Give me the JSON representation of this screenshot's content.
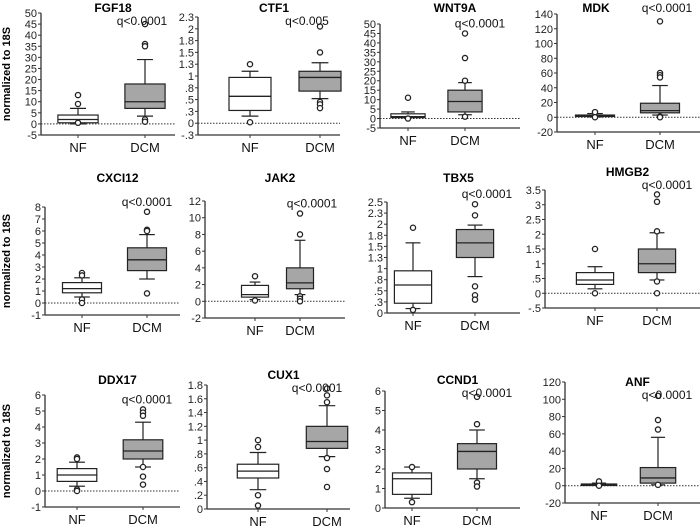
{
  "chart_data": [
    {
      "type": "box",
      "title": "FGF18",
      "q_label": "q<0.0001",
      "ylabel": "normalized to 18S",
      "categories": [
        "NF",
        "DCM"
      ],
      "ylim": [
        -5,
        50
      ],
      "yticks": [
        -5,
        0,
        5,
        10,
        15,
        20,
        25,
        30,
        35,
        40,
        45,
        50
      ],
      "ytick_labels": [
        "-5",
        "0",
        "5",
        "10",
        "15",
        "20",
        "25",
        "30",
        "35",
        "40",
        "45",
        "50"
      ],
      "zero_line": true,
      "series": [
        {
          "min": 0,
          "q1": 0.5,
          "median": 2,
          "q3": 4,
          "max": 7,
          "outliers": [
            13,
            9,
            0.5
          ]
        },
        {
          "min": 3.5,
          "q1": 7,
          "median": 10,
          "q3": 18,
          "max": 29,
          "outliers": [
            45,
            36,
            35,
            2,
            1
          ]
        }
      ]
    },
    {
      "type": "box",
      "title": "CTF1",
      "q_label": "q<0.005",
      "categories": [
        "NF",
        "DCM"
      ],
      "ylim": [
        -0.25,
        2.25
      ],
      "yticks": [
        -0.25,
        0,
        0.25,
        0.5,
        0.75,
        1,
        1.25,
        1.5,
        1.75,
        2,
        2.25
      ],
      "ytick_labels": [
        "-.3",
        "0",
        ".3",
        ".5",
        ".8",
        "1",
        "1.3",
        "1.5",
        "1.8",
        "2",
        "2.3"
      ],
      "zero_line": true,
      "series": [
        {
          "min": 0.15,
          "q1": 0.27,
          "median": 0.57,
          "q3": 0.97,
          "max": 1.1,
          "outliers": [
            1.25,
            0.02
          ]
        },
        {
          "min": 0.52,
          "q1": 0.68,
          "median": 0.97,
          "q3": 1.1,
          "max": 1.28,
          "outliers": [
            2.05,
            1.5,
            0.45,
            0.4,
            0.32
          ]
        }
      ]
    },
    {
      "type": "box",
      "title": "WNT9A",
      "q_label": "q<0.0001",
      "categories": [
        "NF",
        "DCM"
      ],
      "ylim": [
        -5,
        50
      ],
      "yticks": [
        -5,
        0,
        5,
        10,
        15,
        20,
        25,
        30,
        35,
        40,
        45,
        50
      ],
      "ytick_labels": [
        "-5",
        "0",
        "5",
        "10",
        "15",
        "20",
        "25",
        "30",
        "35",
        "40",
        "45",
        "50"
      ],
      "zero_line": true,
      "series": [
        {
          "min": 0.5,
          "q1": 0.5,
          "median": 1,
          "q3": 2.5,
          "max": 3.5,
          "outliers": [
            11,
            0
          ]
        },
        {
          "min": 2,
          "q1": 3.5,
          "median": 9,
          "q3": 15,
          "max": 19,
          "outliers": [
            45,
            32,
            20,
            1
          ]
        }
      ]
    },
    {
      "type": "box",
      "title": "MDK",
      "q_label": "q<0.0001",
      "categories": [
        "NF",
        "DCM"
      ],
      "ylim": [
        -20,
        140
      ],
      "yticks": [
        -20,
        0,
        20,
        40,
        60,
        80,
        100,
        120,
        140
      ],
      "ytick_labels": [
        "-20",
        "0",
        "20",
        "40",
        "60",
        "80",
        "100",
        "120",
        "140"
      ],
      "zero_line": true,
      "series": [
        {
          "min": 0.5,
          "q1": 1,
          "median": 2,
          "q3": 3,
          "max": 5,
          "outliers": [
            7,
            0
          ]
        },
        {
          "min": 3,
          "q1": 6,
          "median": 9,
          "q3": 19,
          "max": 43,
          "outliers": [
            130,
            60,
            57,
            54,
            1,
            0
          ]
        }
      ]
    },
    {
      "type": "box",
      "title": "CXCI12",
      "q_label": "q<0.0001",
      "ylabel": "normalized to 18S",
      "categories": [
        "NF",
        "DCM"
      ],
      "ylim": [
        -1,
        8
      ],
      "yticks": [
        -1,
        0,
        1,
        2,
        3,
        4,
        5,
        6,
        7,
        8
      ],
      "ytick_labels": [
        "-1",
        "0",
        "1",
        "2",
        "3",
        "4",
        "5",
        "6",
        "7",
        "8"
      ],
      "zero_line": true,
      "series": [
        {
          "min": 0.5,
          "q1": 0.85,
          "median": 1.2,
          "q3": 1.7,
          "max": 2.1,
          "outliers": [
            2.5,
            2.3,
            0.3,
            0
          ]
        },
        {
          "min": 2,
          "q1": 2.7,
          "median": 3.6,
          "q3": 4.6,
          "max": 5.7,
          "outliers": [
            7.6,
            6.1,
            6.0,
            0.8
          ]
        }
      ]
    },
    {
      "type": "box",
      "title": "JAK2",
      "q_label": "q<0.0001",
      "categories": [
        "NF",
        "DCM"
      ],
      "ylim": [
        -2,
        12
      ],
      "yticks": [
        -2,
        0,
        2,
        4,
        6,
        8,
        10,
        12
      ],
      "ytick_labels": [
        "-2",
        "0",
        "2",
        "4",
        "6",
        "8",
        "10",
        "12"
      ],
      "zero_line": true,
      "series": [
        {
          "min": 0.2,
          "q1": 0.5,
          "median": 0.8,
          "q3": 1.9,
          "max": 2.3,
          "outliers": [
            3,
            0.1
          ]
        },
        {
          "min": 0.8,
          "q1": 1.5,
          "median": 2.2,
          "q3": 4,
          "max": 7.3,
          "outliers": [
            10.5,
            8,
            0.6,
            0.3,
            0
          ]
        }
      ]
    },
    {
      "type": "box",
      "title": "TBX5",
      "q_label": "q<0.0001",
      "categories": [
        "NF",
        "DCM"
      ],
      "ylim": [
        0,
        2.5
      ],
      "yticks": [
        0,
        0.25,
        0.5,
        0.75,
        1,
        1.25,
        1.5,
        1.75,
        2,
        2.25,
        2.5
      ],
      "ytick_labels": [
        "0",
        ".3",
        ".5",
        ".8",
        "1",
        "1.3",
        "1.5",
        "1.8",
        "2",
        "2.3",
        "2.5"
      ],
      "zero_line": false,
      "series": [
        {
          "min": 0.1,
          "q1": 0.22,
          "median": 0.63,
          "q3": 0.95,
          "max": 1.58,
          "outliers": [
            1.92,
            0.07
          ]
        },
        {
          "min": 0.82,
          "q1": 1.25,
          "median": 1.58,
          "q3": 1.88,
          "max": 1.98,
          "outliers": [
            2.45,
            2.2,
            0.6,
            0.4,
            0.3
          ]
        }
      ]
    },
    {
      "type": "box",
      "title": "HMGB2",
      "q_label": "q<0.0001",
      "categories": [
        "NF",
        "DCM"
      ],
      "ylim": [
        -0.5,
        3.5
      ],
      "yticks": [
        -0.5,
        0,
        0.5,
        1,
        1.5,
        2,
        2.5,
        3,
        3.5
      ],
      "ytick_labels": [
        "-.5",
        "0",
        ".5",
        "1",
        "1.5",
        "2",
        "2.5",
        "3",
        "3.5"
      ],
      "zero_line": true,
      "series": [
        {
          "min": 0.15,
          "q1": 0.3,
          "median": 0.45,
          "q3": 0.7,
          "max": 0.9,
          "outliers": [
            1.5,
            0
          ]
        },
        {
          "min": 0.45,
          "q1": 0.7,
          "median": 1,
          "q3": 1.5,
          "max": 2.05,
          "outliers": [
            3.35,
            3.1,
            2.1,
            0.4,
            0
          ]
        }
      ]
    },
    {
      "type": "box",
      "title": "DDX17",
      "q_label": "q<0.0001",
      "ylabel": "normalized to 18S",
      "categories": [
        "NF",
        "DCM"
      ],
      "ylim": [
        -1,
        6
      ],
      "yticks": [
        -1,
        0,
        1,
        2,
        3,
        4,
        5,
        6
      ],
      "ytick_labels": [
        "-1",
        "0",
        "1",
        "2",
        "3",
        "4",
        "5",
        "6"
      ],
      "zero_line": true,
      "series": [
        {
          "min": 0.3,
          "q1": 0.6,
          "median": 1,
          "q3": 1.4,
          "max": 1.8,
          "outliers": [
            2.1,
            2,
            0.1,
            0
          ]
        },
        {
          "min": 1.5,
          "q1": 2,
          "median": 2.5,
          "q3": 3.2,
          "max": 4.3,
          "outliers": [
            5.1,
            4.9,
            4.7,
            1.5,
            0.9,
            0.4
          ]
        }
      ]
    },
    {
      "type": "box",
      "title": "CUX1",
      "q_label": "q<0.0001",
      "categories": [
        "NF",
        "DCM"
      ],
      "ylim": [
        0,
        1.8
      ],
      "yticks": [
        0,
        0.2,
        0.4,
        0.6,
        0.8,
        1,
        1.2,
        1.4,
        1.6,
        1.8
      ],
      "ytick_labels": [
        "0",
        ".2",
        ".4",
        ".6",
        ".8",
        "1",
        "1.2",
        "1.4",
        "1.6",
        "1.8"
      ],
      "zero_line": false,
      "series": [
        {
          "min": 0.28,
          "q1": 0.45,
          "median": 0.55,
          "q3": 0.65,
          "max": 0.82,
          "outliers": [
            1,
            0.9,
            0.2,
            0.05
          ]
        },
        {
          "min": 0.76,
          "q1": 0.88,
          "median": 0.98,
          "q3": 1.2,
          "max": 1.5,
          "outliers": [
            1.75,
            1.65,
            1.55,
            0.74,
            0.58,
            0.32
          ]
        }
      ]
    },
    {
      "type": "box",
      "title": "CCND1",
      "q_label": "q<0.0001",
      "categories": [
        "NF",
        "DCM"
      ],
      "ylim": [
        0,
        6
      ],
      "yticks": [
        0,
        1,
        2,
        3,
        4,
        5,
        6
      ],
      "ytick_labels": [
        "0",
        "1",
        "2",
        "3",
        "4",
        "5",
        "6"
      ],
      "zero_line": false,
      "series": [
        {
          "min": 0.5,
          "q1": 0.7,
          "median": 1.5,
          "q3": 1.8,
          "max": 2.1,
          "outliers": [
            2.1,
            0.3
          ]
        },
        {
          "min": 1.5,
          "q1": 2,
          "median": 2.9,
          "q3": 3.3,
          "max": 4,
          "outliers": [
            5.7,
            4.3,
            1.3,
            1.1
          ]
        }
      ]
    },
    {
      "type": "box",
      "title": "ANF",
      "q_label": "q<0.0001",
      "categories": [
        "NF",
        "DCM"
      ],
      "ylim": [
        -20,
        120
      ],
      "yticks": [
        -20,
        0,
        20,
        40,
        60,
        80,
        100,
        120
      ],
      "ytick_labels": [
        "-20",
        "0",
        "20",
        "40",
        "60",
        "80",
        "100",
        "120"
      ],
      "zero_line": true,
      "series": [
        {
          "min": 0.5,
          "q1": 0.5,
          "median": 1,
          "q3": 2,
          "max": 3,
          "outliers": [
            5,
            0
          ]
        },
        {
          "min": 1,
          "q1": 3,
          "median": 9,
          "q3": 21,
          "max": 56,
          "outliers": [
            104,
            76,
            65,
            1
          ]
        }
      ]
    }
  ],
  "colors": {
    "nf_box": "#ffffff",
    "dcm_box": "#a6a6a6",
    "outline": "#222222"
  }
}
